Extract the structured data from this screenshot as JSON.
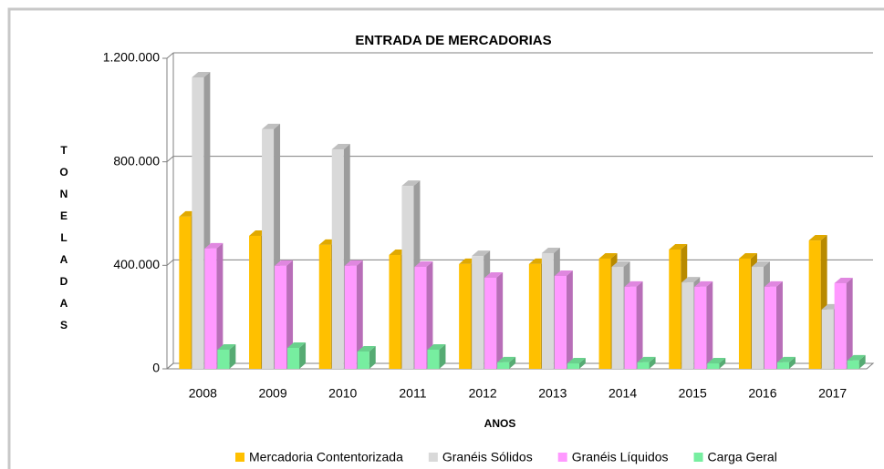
{
  "chart_data": {
    "type": "bar3d",
    "title": "ENTRADA DE MERCADORIAS",
    "x_label": "ANOS",
    "y_label": "TONELADAS",
    "categories": [
      "2008",
      "2009",
      "2010",
      "2011",
      "2012",
      "2013",
      "2014",
      "2015",
      "2016",
      "2017"
    ],
    "series": [
      {
        "name": "Mercadoria Contentorizada",
        "color": "#ffc000",
        "values": [
          588000,
          514000,
          479000,
          440000,
          405000,
          405000,
          426000,
          461000,
          426000,
          496000
        ]
      },
      {
        "name": "Granéis Sólidos",
        "color": "#d9d9d9",
        "values": [
          1126000,
          926000,
          848000,
          707000,
          436000,
          447000,
          394000,
          334000,
          394000,
          229000
        ]
      },
      {
        "name": "Granéis Líquidos",
        "color": "#ff99ff",
        "values": [
          465000,
          398000,
          398000,
          394000,
          352000,
          359000,
          317000,
          317000,
          317000,
          331000
        ]
      },
      {
        "name": "Carga Geral",
        "color": "#77eea0",
        "values": [
          74000,
          81000,
          67000,
          74000,
          25000,
          21000,
          25000,
          21000,
          25000,
          32000
        ]
      }
    ],
    "ylim": [
      0,
      1200000
    ],
    "yticks": [
      0,
      {
        "value": 400000,
        "label": "400.000"
      },
      {
        "value": 800000,
        "label": "800.000"
      },
      {
        "value": 1200000,
        "label": "1.200.000"
      }
    ],
    "grid": true
  }
}
